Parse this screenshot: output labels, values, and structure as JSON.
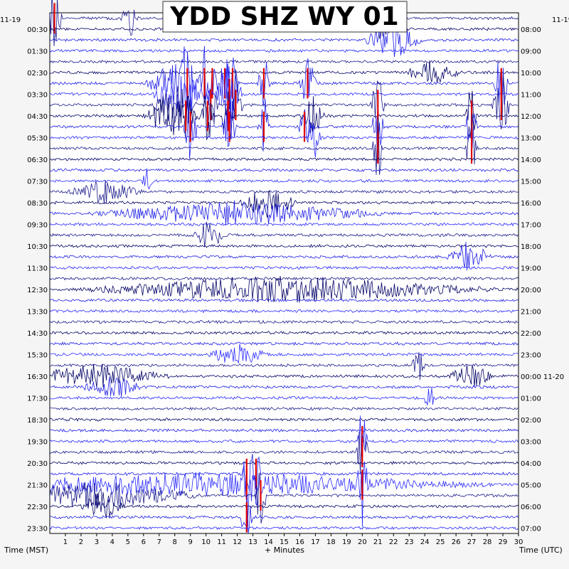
{
  "chart_data": {
    "type": "line",
    "title": "YDD SHZ WY 01",
    "left_corner_date": "11-19",
    "right_corner_date": "11-19",
    "xlabel": "+ Minutes",
    "left_axis_label": "Time (MST)",
    "right_axis_label": "Time (UTC)",
    "xlim": [
      0,
      30
    ],
    "x_ticks": [
      "1",
      "2",
      "3",
      "4",
      "5",
      "6",
      "7",
      "8",
      "9",
      "10",
      "11",
      "12",
      "13",
      "14",
      "15",
      "16",
      "17",
      "18",
      "19",
      "20",
      "21",
      "22",
      "23",
      "24",
      "25",
      "26",
      "27",
      "28",
      "29",
      "30"
    ],
    "left_ticks": [
      "00:30",
      "01:30",
      "02:30",
      "03:30",
      "04:30",
      "05:30",
      "06:30",
      "07:30",
      "08:30",
      "09:30",
      "10:30",
      "11:30",
      "12:30",
      "13:30",
      "14:30",
      "15:30",
      "16:30",
      "17:30",
      "18:30",
      "19:30",
      "20:30",
      "21:30",
      "22:30",
      "23:30"
    ],
    "right_ticks": [
      "08:00",
      "09:00",
      "10:00",
      "11:00",
      "12:00",
      "13:00",
      "14:00",
      "15:00",
      "16:00",
      "17:00",
      "18:00",
      "19:00",
      "20:00",
      "21:00",
      "22:00",
      "23:00",
      "00:00 11-20",
      "01:00",
      "02:00",
      "03:00",
      "04:00",
      "05:00",
      "06:00",
      "07:00"
    ],
    "rows_per_day": 48,
    "row_minutes": 30,
    "trace_colors": [
      "#1a1a8c",
      "#000066",
      "#1e1ee6",
      "#2a2aff"
    ],
    "clip_color": "#e00000",
    "events": [
      {
        "row": 0,
        "minute": 0.3,
        "amp": 1.0,
        "dur": 0.5,
        "clipped": true
      },
      {
        "row": 0,
        "minute": 5.1,
        "amp": 0.9,
        "dur": 0.6,
        "clipped": false
      },
      {
        "row": 1,
        "minute": 21.0,
        "amp": 0.5,
        "dur": 1.0,
        "clipped": false
      },
      {
        "row": 2,
        "minute": 22.0,
        "amp": 0.8,
        "dur": 2.0,
        "clipped": false
      },
      {
        "row": 5,
        "minute": 24.5,
        "amp": 0.5,
        "dur": 2.0,
        "clipped": false
      },
      {
        "row": 6,
        "minute": 8.0,
        "amp": 1.0,
        "dur": 2.0,
        "clipped": false
      },
      {
        "row": 6,
        "minute": 8.8,
        "amp": 1.0,
        "dur": 0.4,
        "clipped": true
      },
      {
        "row": 6,
        "minute": 9.9,
        "amp": 1.0,
        "dur": 0.4,
        "clipped": true
      },
      {
        "row": 6,
        "minute": 10.4,
        "amp": 1.0,
        "dur": 0.4,
        "clipped": true
      },
      {
        "row": 6,
        "minute": 11.2,
        "amp": 1.0,
        "dur": 0.4,
        "clipped": true
      },
      {
        "row": 6,
        "minute": 11.7,
        "amp": 1.0,
        "dur": 0.4,
        "clipped": true
      },
      {
        "row": 6,
        "minute": 13.7,
        "amp": 1.0,
        "dur": 0.4,
        "clipped": true
      },
      {
        "row": 6,
        "minute": 16.5,
        "amp": 1.0,
        "dur": 0.6,
        "clipped": true
      },
      {
        "row": 6,
        "minute": 28.9,
        "amp": 1.0,
        "dur": 0.5,
        "clipped": true
      },
      {
        "row": 7,
        "minute": 8.5,
        "amp": 1.0,
        "dur": 2.0,
        "clipped": false
      },
      {
        "row": 7,
        "minute": 11.5,
        "amp": 1.0,
        "dur": 1.0,
        "clipped": true
      },
      {
        "row": 8,
        "minute": 8.0,
        "amp": 1.0,
        "dur": 1.5,
        "clipped": false
      },
      {
        "row": 8,
        "minute": 10.3,
        "amp": 1.0,
        "dur": 0.5,
        "clipped": true
      },
      {
        "row": 8,
        "minute": 11.9,
        "amp": 1.0,
        "dur": 0.5,
        "clipped": true
      },
      {
        "row": 8,
        "minute": 21.0,
        "amp": 1.0,
        "dur": 0.5,
        "clipped": true
      },
      {
        "row": 8,
        "minute": 28.9,
        "amp": 1.0,
        "dur": 0.6,
        "clipped": true
      },
      {
        "row": 9,
        "minute": 7.8,
        "amp": 1.0,
        "dur": 2.0,
        "clipped": false
      },
      {
        "row": 9,
        "minute": 8.7,
        "amp": 1.0,
        "dur": 0.4,
        "clipped": true
      },
      {
        "row": 9,
        "minute": 10.1,
        "amp": 1.0,
        "dur": 0.4,
        "clipped": true
      },
      {
        "row": 9,
        "minute": 11.4,
        "amp": 1.0,
        "dur": 0.4,
        "clipped": true
      },
      {
        "row": 9,
        "minute": 16.8,
        "amp": 1.0,
        "dur": 0.8,
        "clipped": false
      },
      {
        "row": 9,
        "minute": 27.0,
        "amp": 1.0,
        "dur": 0.4,
        "clipped": true
      },
      {
        "row": 10,
        "minute": 9.0,
        "amp": 1.0,
        "dur": 0.5,
        "clipped": true
      },
      {
        "row": 10,
        "minute": 11.5,
        "amp": 1.0,
        "dur": 0.5,
        "clipped": true
      },
      {
        "row": 10,
        "minute": 13.7,
        "amp": 1.0,
        "dur": 0.4,
        "clipped": true
      },
      {
        "row": 10,
        "minute": 16.3,
        "amp": 1.0,
        "dur": 0.4,
        "clipped": true
      },
      {
        "row": 10,
        "minute": 21.0,
        "amp": 1.0,
        "dur": 0.4,
        "clipped": true
      },
      {
        "row": 10,
        "minute": 27.0,
        "amp": 1.0,
        "dur": 0.4,
        "clipped": true
      },
      {
        "row": 11,
        "minute": 16.9,
        "amp": 1.0,
        "dur": 0.5,
        "clipped": false
      },
      {
        "row": 12,
        "minute": 21.0,
        "amp": 1.0,
        "dur": 0.4,
        "clipped": true
      },
      {
        "row": 12,
        "minute": 27.0,
        "amp": 1.0,
        "dur": 0.4,
        "clipped": true
      },
      {
        "row": 15,
        "minute": 6.2,
        "amp": 0.8,
        "dur": 0.4,
        "clipped": false
      },
      {
        "row": 16,
        "minute": 3.5,
        "amp": 0.5,
        "dur": 2.5,
        "clipped": false
      },
      {
        "row": 17,
        "minute": 14.0,
        "amp": 0.7,
        "dur": 2.0,
        "clipped": false
      },
      {
        "row": 18,
        "minute": 12.0,
        "amp": 0.5,
        "dur": 10.0,
        "clipped": false
      },
      {
        "row": 20,
        "minute": 10.2,
        "amp": 0.8,
        "dur": 1.0,
        "clipped": false
      },
      {
        "row": 22,
        "minute": 26.8,
        "amp": 0.7,
        "dur": 1.5,
        "clipped": false
      },
      {
        "row": 25,
        "minute": 15.0,
        "amp": 0.55,
        "dur": 14.0,
        "clipped": false
      },
      {
        "row": 31,
        "minute": 12.0,
        "amp": 0.5,
        "dur": 2.0,
        "clipped": false
      },
      {
        "row": 32,
        "minute": 23.6,
        "amp": 0.7,
        "dur": 0.5,
        "clipped": false
      },
      {
        "row": 33,
        "minute": 3.0,
        "amp": 0.5,
        "dur": 5.0,
        "clipped": false
      },
      {
        "row": 33,
        "minute": 27.0,
        "amp": 0.6,
        "dur": 1.5,
        "clipped": false
      },
      {
        "row": 34,
        "minute": 4.0,
        "amp": 0.5,
        "dur": 2.0,
        "clipped": false
      },
      {
        "row": 35,
        "minute": 24.3,
        "amp": 0.6,
        "dur": 0.5,
        "clipped": false
      },
      {
        "row": 39,
        "minute": 20.0,
        "amp": 1.0,
        "dur": 0.4,
        "clipped": true
      },
      {
        "row": 40,
        "minute": 20.0,
        "amp": 1.0,
        "dur": 0.4,
        "clipped": true
      },
      {
        "row": 42,
        "minute": 12.6,
        "amp": 1.0,
        "dur": 0.4,
        "clipped": true
      },
      {
        "row": 42,
        "minute": 13.2,
        "amp": 1.0,
        "dur": 0.4,
        "clipped": true
      },
      {
        "row": 43,
        "minute": 10.0,
        "amp": 0.5,
        "dur": 19.0,
        "clipped": false
      },
      {
        "row": 43,
        "minute": 12.6,
        "amp": 1.0,
        "dur": 0.4,
        "clipped": true
      },
      {
        "row": 43,
        "minute": 20.0,
        "amp": 1.0,
        "dur": 0.4,
        "clipped": true
      },
      {
        "row": 44,
        "minute": 3.0,
        "amp": 0.6,
        "dur": 7.0,
        "clipped": false
      },
      {
        "row": 44,
        "minute": 13.5,
        "amp": 1.0,
        "dur": 0.4,
        "clipped": true
      },
      {
        "row": 45,
        "minute": 3.3,
        "amp": 0.7,
        "dur": 1.5,
        "clipped": false
      },
      {
        "row": 46,
        "minute": 12.6,
        "amp": 1.0,
        "dur": 0.4,
        "clipped": true
      }
    ]
  }
}
